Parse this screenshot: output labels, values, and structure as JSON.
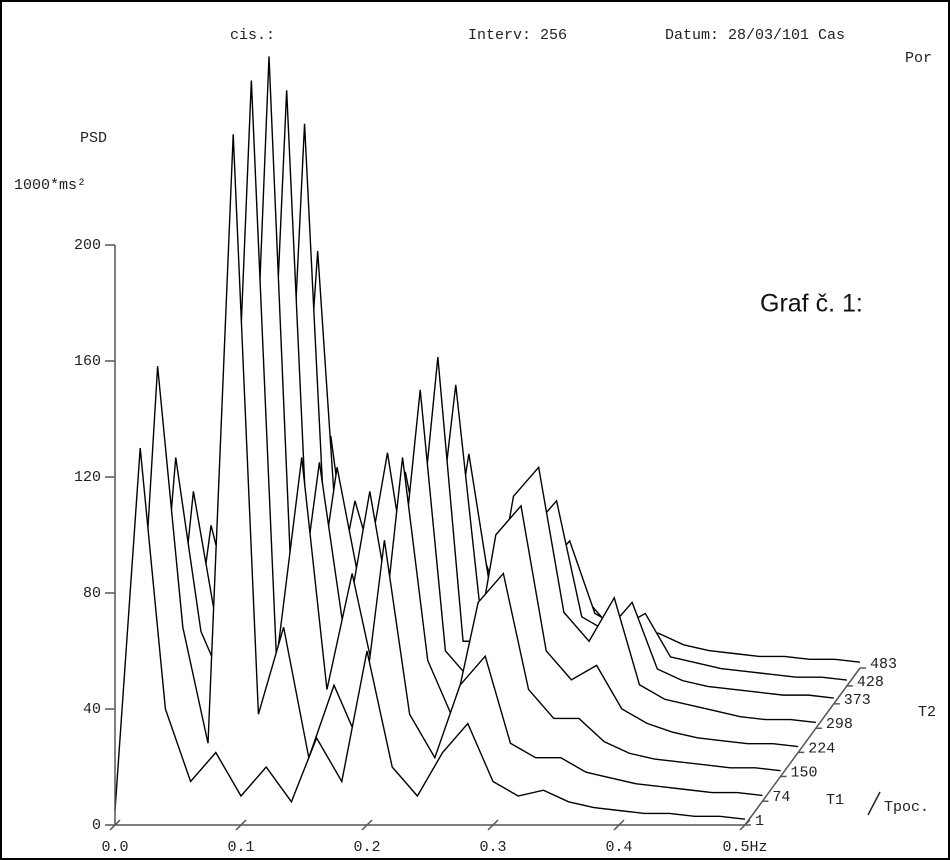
{
  "chart_data": {
    "type": "waterfall3d",
    "header": [
      "cis.:",
      "Interv: 256",
      "Datum: 28/03/101 Cas",
      "Por"
    ],
    "ylabel": "PSD",
    "yunit": "1000*ms²",
    "caption": "Graf č. 1:",
    "zlabels": [
      "T1",
      "T2",
      "Tpoc."
    ],
    "x": [
      0,
      0.02,
      0.04,
      0.06,
      0.08,
      0.1,
      0.12,
      0.14,
      0.16,
      0.18,
      0.2,
      0.22,
      0.24,
      0.26,
      0.28,
      0.3,
      0.32,
      0.34,
      0.36,
      0.38,
      0.4,
      0.42,
      0.44,
      0.46,
      0.48,
      0.5
    ],
    "xlim": [
      0,
      0.5
    ],
    "xticks": [
      {
        "value": 0,
        "label": "0.0"
      },
      0.1,
      0.2,
      0.3,
      0.4,
      {
        "value": 0.5,
        "label": "0.5Hz"
      }
    ],
    "ylim": [
      0,
      200
    ],
    "yticks": [
      0,
      40,
      80,
      120,
      160,
      200
    ],
    "zlim": [
      1,
      483
    ],
    "zticks": [
      1,
      74,
      150,
      224,
      298,
      373,
      428,
      483
    ],
    "color": "#000000",
    "series": [
      {
        "z": 483,
        "values": [
          5,
          20,
          15,
          15,
          80,
          15,
          30,
          20,
          30,
          15,
          40,
          15,
          15,
          20,
          25,
          15,
          12,
          12,
          8,
          6,
          5,
          4,
          4,
          3,
          3,
          2
        ]
      },
      {
        "z": 428,
        "values": [
          5,
          40,
          25,
          20,
          150,
          20,
          50,
          30,
          60,
          25,
          80,
          25,
          20,
          40,
          50,
          25,
          20,
          25,
          10,
          8,
          6,
          5,
          4,
          3,
          3,
          2
        ]
      },
      {
        "z": 373,
        "values": [
          5,
          60,
          30,
          20,
          200,
          25,
          70,
          40,
          80,
          35,
          110,
          30,
          25,
          60,
          70,
          30,
          25,
          35,
          12,
          8,
          6,
          5,
          4,
          3,
          3,
          2
        ]
      },
      {
        "z": 298,
        "values": [
          5,
          70,
          35,
          25,
          220,
          30,
          90,
          45,
          95,
          40,
          128,
          30,
          30,
          80,
          90,
          40,
          30,
          45,
          15,
          10,
          8,
          6,
          4,
          3,
          3,
          2
        ]
      },
      {
        "z": 224,
        "values": [
          5,
          90,
          40,
          25,
          240,
          35,
          100,
          40,
          90,
          40,
          125,
          35,
          25,
          75,
          85,
          35,
          25,
          30,
          15,
          10,
          7,
          5,
          4,
          3,
          3,
          2
        ]
      },
      {
        "z": 150,
        "values": [
          5,
          110,
          50,
          30,
          240,
          40,
          110,
          30,
          70,
          30,
          110,
          40,
          20,
          60,
          70,
          30,
          20,
          20,
          12,
          8,
          6,
          5,
          4,
          3,
          3,
          2
        ]
      },
      {
        "z": 74,
        "values": [
          5,
          150,
          60,
          20,
          230,
          30,
          60,
          15,
          40,
          20,
          90,
          30,
          15,
          40,
          50,
          20,
          15,
          15,
          10,
          8,
          6,
          5,
          4,
          3,
          3,
          2
        ]
      },
      {
        "z": 1,
        "values": [
          5,
          130,
          40,
          15,
          25,
          10,
          20,
          8,
          30,
          15,
          60,
          20,
          10,
          25,
          35,
          15,
          10,
          12,
          8,
          6,
          5,
          4,
          4,
          3,
          3,
          2
        ]
      }
    ]
  }
}
